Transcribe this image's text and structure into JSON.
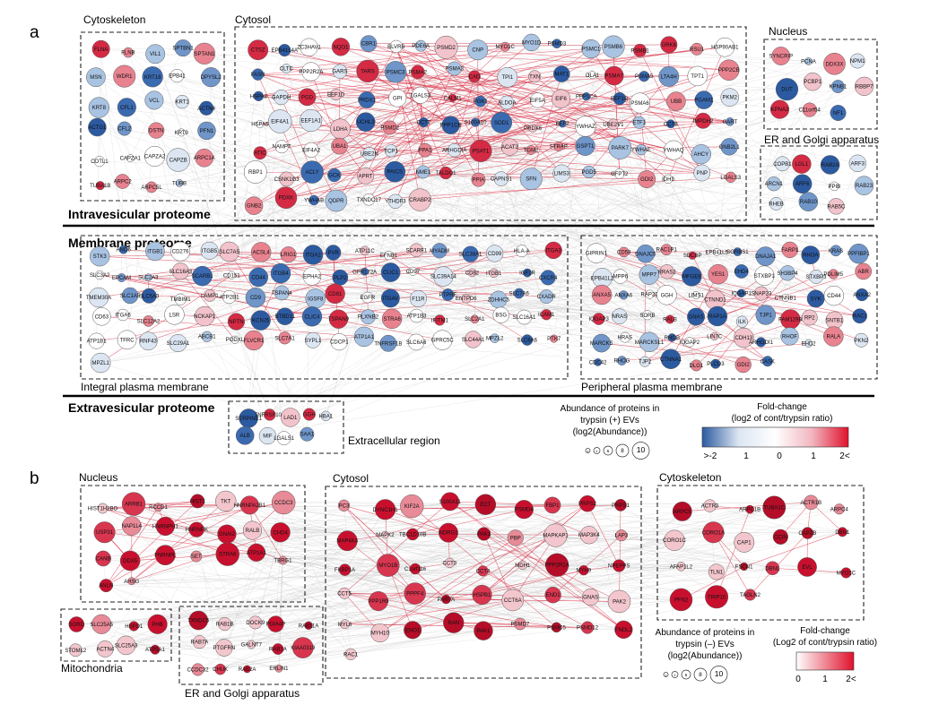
{
  "panel_a": {
    "label": "a",
    "headers": {
      "intra": "Intravesicular proteome",
      "membrane": "Membrane proteome",
      "extra": "Extravesicular proteome"
    },
    "regions": {
      "cytoskeleton": "Cytoskeleton",
      "cytosol": "Cytosol",
      "nucleus": "Nucleus",
      "er_golgi": "ER and Golgi apparatus",
      "integral": "Integral plasma membrane",
      "peripheral": "Peripheral plasma membrane",
      "extracellular": "Extracellular region"
    },
    "size_legend": {
      "title_lines": [
        "Abundance of proteins in",
        "trypsin (+) EVs",
        "(log2(Abundance))"
      ],
      "ticks": [
        "2",
        "4",
        "6",
        "8",
        "10"
      ]
    },
    "color_legend": {
      "title_lines": [
        "Fold-change",
        "(log2 of cont/trypsin ratio)"
      ],
      "ticks": [
        ">-2",
        "1",
        "0",
        "1",
        "2<"
      ],
      "colors": [
        "#2c5aa0",
        "#dce6f2",
        "#ffffff",
        "#f2b6c0",
        "#e0112c"
      ]
    }
  },
  "panel_b": {
    "label": "b",
    "regions": {
      "nucleus": "Nucleus",
      "cytosol": "Cytosol",
      "cytoskeleton": "Cytoskeleton",
      "mitochondria": "Mitochondria",
      "er_golgi": "ER and Golgi apparatus"
    },
    "size_legend": {
      "title_lines": [
        "Abundance of proteins in",
        "trypsin (–) EVs",
        "(log2(Abundance))"
      ],
      "ticks": [
        "2",
        "4",
        "6",
        "8",
        "10"
      ]
    },
    "color_legend": {
      "title_lines": [
        "Fold-change",
        "(Log2 of cont/trypsin ratio)"
      ],
      "ticks": [
        "0",
        "1",
        "2<"
      ],
      "colors": [
        "#ffffff",
        "#e0112c"
      ]
    }
  },
  "nodes_a": {
    "cytoskeleton": [
      "FLNA",
      "FLNB",
      "VIL1",
      "SPTBN1",
      "SPTAN1",
      "MSN",
      "WDR1",
      "KRT18",
      "EPB41",
      "DPYSL2",
      "KRT8",
      "CFL1",
      "VCL",
      "KRT1",
      "ACTN4",
      "ACTG1",
      "CFL2",
      "DSTN",
      "KRT9",
      "PFN1",
      "COTL1",
      "CAPZA1",
      "CAPZA2",
      "CAPZB",
      "ARPC1A",
      "TUBA1B",
      "ARPC2",
      "ARPC5L",
      "TUBB"
    ],
    "cytosol": [
      "CTSZ",
      "EPB41L4A",
      "ZC3HAV1",
      "NQO1",
      "CBR1",
      "BLVRB",
      "PDE6A",
      "PSMD2",
      "CNP",
      "MYO1C",
      "MYO1D",
      "PSMD3",
      "PSMC1",
      "PSMB6",
      "PSMB1",
      "GRK6",
      "RSU1",
      "HSP90AB1",
      "FASN",
      "CLTC",
      "PPP2R2A",
      "GARS",
      "TARS",
      "PSMC3",
      "PSMA2",
      "PSMA3",
      "CAD",
      "TPI1",
      "TXN",
      "MAT1",
      "OLA1",
      "PSMA7",
      "PSMA5",
      "LTA4H",
      "TPT1",
      "PPP2CB",
      "HSPA8",
      "GAPDH",
      "PGD",
      "EEF1D",
      "PRDX1",
      "GPI",
      "LGALS3",
      "CALM1",
      "PGK1",
      "ALDOA",
      "EIF5A",
      "EIF6",
      "PPP1CA",
      "EEF1G",
      "PSMA6",
      "UBB",
      "PGAM1",
      "PKM2",
      "HSPA5",
      "EIF4A1",
      "EEF1A1",
      "LDHA",
      "UCHL3",
      "PSMD2",
      "CCT7",
      "PPP1CB",
      "S100A10",
      "SOD1",
      "PRDX6",
      "EEF2",
      "YWHAZ",
      "UBE2V1",
      "ETF1",
      "CCT8",
      "IMPDH2",
      "GART",
      "ATIC",
      "NAMPT",
      "EIF4A2",
      "UBA1",
      "UBE2N",
      "TCP1",
      "PPA1",
      "ARHGDIA",
      "PSAT1",
      "ACAT2",
      "TGM2",
      "STRAP",
      "GSPT1",
      "PARK7",
      "YWHAE",
      "YWHAQ",
      "AHCY",
      "GNB2L1",
      "RBP1",
      "CSNK1G3",
      "ACLY",
      "GCK",
      "APRT",
      "PAICS",
      "NME1",
      "TALDO1",
      "PPIA",
      "CAPNS1",
      "SFN",
      "LIMS3",
      "PGD5",
      "GFPT2",
      "GDI2",
      "IDH3",
      "PNP",
      "LGALS3",
      "GNB2",
      "PDXK",
      "YWHAB",
      "QDPR",
      "TXNDC17",
      "YTHDF3",
      "CRABP2"
    ],
    "nucleus": [
      "SYNCRIP",
      "PCNA",
      "DDX3X",
      "NPM1",
      "DUT",
      "PCBP1",
      "KPNB1",
      "RBBP7",
      "KPNA2",
      "C11orf54",
      "NF1"
    ],
    "er_golgi": [
      "COPB1",
      "LGL1",
      "RAB2A",
      "ARF3",
      "ARCN1",
      "ARF6",
      "PPIB",
      "RAB23",
      "RHEB",
      "RAB10",
      "RAB5C"
    ],
    "integral": [
      "STK3",
      "ANO6",
      "ITGB1",
      "CD276",
      "ITGB5",
      "SLC7A5",
      "ACSL4",
      "LRIG1",
      "ITGA2",
      "PVR",
      "ATP11C",
      "EFNB1",
      "SCARF1",
      "MYADM",
      "SLC38A1",
      "CD99",
      "HLA-A",
      "ITGA3",
      "SLC3A2",
      "EPCAM",
      "SLC2A3",
      "SLC16A3",
      "SCARB1",
      "CD151",
      "CD44",
      "ITGB4",
      "EPHA2",
      "PLP2",
      "GPR172A",
      "CLIC1",
      "CD97",
      "SLC39A14",
      "CD82",
      "ITGB1",
      "IGF1R",
      "CXCR4",
      "TMEM30A",
      "SLC1A5",
      "SLC5A3",
      "TMBIM1",
      "LAMP1",
      "ATP2B1",
      "CD9",
      "TSPAN4",
      "IGSF8",
      "CD81",
      "EGFR",
      "ITGAV",
      "F11R",
      "PTPRF",
      "ENTPD6",
      "ZDHHC5",
      "SLC7A6",
      "CXADR",
      "CD63",
      "ITGA6",
      "SLC12A2",
      "LSR",
      "NCKAP1",
      "NPTN",
      "KCNJ5",
      "BTBD11",
      "CLIC4",
      "TSPAN9",
      "PLXNB2",
      "STRA6",
      "ATP1B3",
      "IFITM1",
      "SLC2A1",
      "BSG",
      "SLC16A1",
      "ICAM1",
      "ATP1B1",
      "TFRC",
      "RNF43",
      "SLC29A1",
      "ABCB1",
      "PODXL",
      "FLVCR1",
      "SLC7A1",
      "SYPL1",
      "CDCP1",
      "ATP1A1",
      "TNFRSF1B",
      "SLC6A6",
      "GPRC5C",
      "SLC44A1",
      "MPZL2",
      "SLC6A6",
      "PTK7",
      "MPZL1"
    ],
    "peripheral": [
      "GIPRIN1",
      "CD59",
      "DNAJC5",
      "RAC1P1",
      "SDCBP",
      "EPB41L5",
      "SORBS1",
      "DNAJA1",
      "FARP1",
      "RHOA",
      "KRAS",
      "PPFIBP1",
      "EPB41L2",
      "MPP6",
      "MPP7",
      "RRAS2",
      "MFGE8",
      "YES1",
      "EHD4",
      "STXBP1",
      "SH3BP4",
      "STXBP3",
      "PDLIM5",
      "ABR",
      "ANXA5",
      "ANXA6",
      "RAP2C",
      "GGH",
      "LIMS1",
      "CTNND1",
      "IQGAP1",
      "SNAP23",
      "CTNNB1",
      "SYK",
      "CD44",
      "ANXA2",
      "IQGAP3",
      "NRAS",
      "SORB",
      "RALB",
      "GNAS",
      "RAP1A",
      "ILK",
      "TJP1",
      "FAM129B",
      "RP2",
      "SNTB1",
      "RAC1",
      "MARCKS",
      "HRAS",
      "MARCKSL1",
      "RHOB",
      "IQGAP2",
      "LIN7C",
      "CDH13",
      "ARHGDI1",
      "RHOF",
      "EHD2",
      "RALA",
      "PKN2",
      "CDC42",
      "RHOG",
      "TJP2",
      "CTNNA1",
      "DLG1",
      "PLCD3",
      "GDI2",
      "CASK"
    ],
    "extracellular": [
      "SERPINE1",
      "TNFRSF10A",
      "LAD1",
      "GGH",
      "HBA1",
      "ALB",
      "MIF",
      "LGALS1",
      "SAA1"
    ]
  },
  "nodes_b": {
    "nucleus": [
      "HIST1H2BO",
      "ARRB1",
      "RCCD1",
      "HIST1",
      "TKT",
      "HNRNPA2B1",
      "CCDC3",
      "USP31",
      "NAP1L4",
      "HNRNPH1",
      "HNRNPK",
      "GNAI2",
      "RALB",
      "CHD4",
      "CANB",
      "DDX5",
      "FNRNPL",
      "SET",
      "STRA6",
      "ATP1A1",
      "TBRG1",
      "ANLN",
      "AHSG"
    ],
    "cytosol": [
      "PC3",
      "DYNC1H1",
      "KIF2A",
      "S100A11",
      "ECT",
      "PSMD4",
      "FBP1",
      "PRPS2",
      "PRPS1",
      "MAP4K4",
      "MAPK2",
      "TBC1D10B",
      "NDRG1",
      "PAK1",
      "PBP",
      "MAPKAP1",
      "MAP3K4",
      "LAP3",
      "FKBP1A",
      "MYO1B",
      "C1orf116",
      "CCT3",
      "CCT4",
      "MDH1",
      "PPP2R1A",
      "MYH9",
      "NPEPPS",
      "CCT5",
      "PPP1R9",
      "PPPF4",
      "PARVA",
      "HSPB1",
      "CCT6A",
      "END1",
      "GNAS",
      "PAK2",
      "MYL6",
      "MYH10",
      "ENO1",
      "RAN",
      "PAK1",
      "PSMD7",
      "PSMC5",
      "PSMD12",
      "FNDL2",
      "RAC1"
    ],
    "cytoskeleton": [
      "ARPC5",
      "ACTR3",
      "ARPC1B",
      "TUBA1C",
      "ACTR1B",
      "ARPC4",
      "CORO1C",
      "CORO1A",
      "CAP1",
      "CCIN",
      "CAPZB",
      "DBN1",
      "AFAP1L2",
      "TLN1",
      "FSCN1",
      "DBNL",
      "EVL",
      "MYO1C",
      "PFN2",
      "TRIP10",
      "TAGLN2"
    ],
    "mitochondria": [
      "SORD",
      "SLC25A5",
      "HSPD1",
      "PHB",
      "STOML2",
      "ACTN4",
      "SLC25A3",
      "ATP5A1"
    ],
    "er_golgi": [
      "TXNDC5",
      "RAB1B",
      "DOCK9",
      "PDIA4P",
      "RAB11A",
      "RAB7A",
      "PTGFRN",
      "GALNT7",
      "RAB1A",
      "KIAA0319",
      "CCDC32",
      "CHUK",
      "RAB2A",
      "ERLIN1"
    ]
  }
}
